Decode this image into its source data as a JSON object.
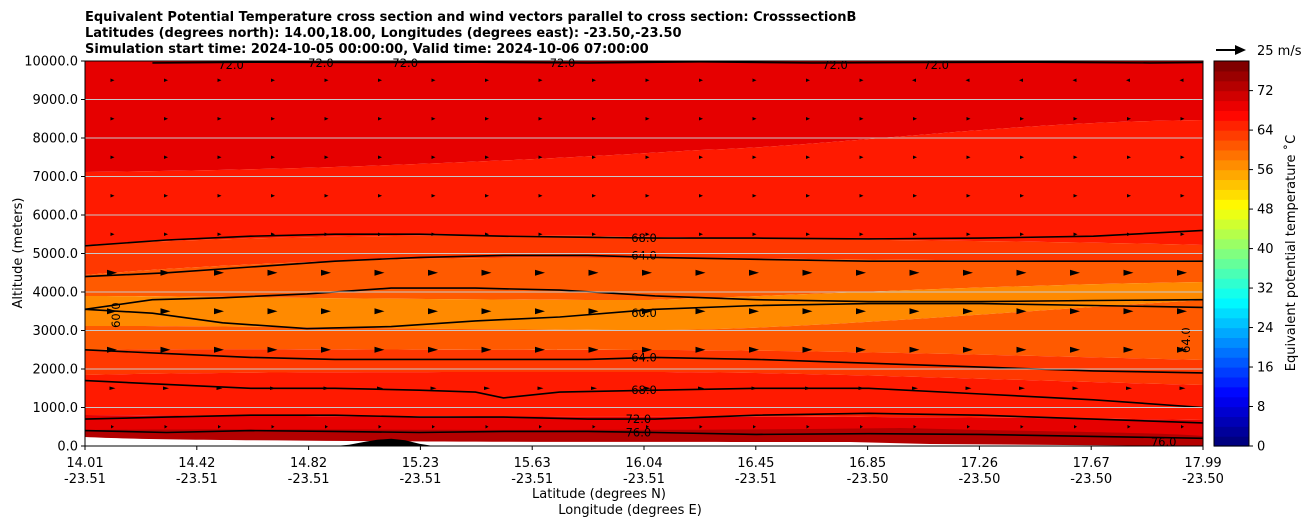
{
  "chart_data": {
    "type": "heatmap",
    "title_lines": [
      "Equivalent Potential Temperature cross section and wind vectors parallel to cross section: CrosssectionB",
      "Latitudes (degrees north): 14.00,18.00, Longitudes (degrees east): -23.50,-23.50",
      "Simulation start time: 2024-10-05 00:00:00, Valid time: 2024-10-06 07:00:00"
    ],
    "xlabel_lat": "Latitude (degrees N)",
    "xlabel_lon": "Longitude (degrees E)",
    "ylabel": "Altitude (meters)",
    "x_ticks_lat": [
      "14.01",
      "14.42",
      "14.82",
      "15.23",
      "15.63",
      "16.04",
      "16.45",
      "16.85",
      "17.26",
      "17.67",
      "17.99"
    ],
    "x_ticks_lon": [
      "-23.51",
      "-23.51",
      "-23.51",
      "-23.51",
      "-23.51",
      "-23.51",
      "-23.51",
      "-23.50",
      "-23.50",
      "-23.50",
      "-23.50"
    ],
    "x_range": [
      14.01,
      17.99
    ],
    "y_ticks": [
      "0.0",
      "1000.0",
      "2000.0",
      "3000.0",
      "4000.0",
      "5000.0",
      "6000.0",
      "7000.0",
      "8000.0",
      "9000.0",
      "10000.0"
    ],
    "ylim": [
      0,
      10000
    ],
    "grid": "horizontal",
    "colorbar": {
      "label": "Equivalent potential temperature ˚C",
      "ticks": [
        "0",
        "8",
        "16",
        "24",
        "32",
        "40",
        "48",
        "56",
        "64",
        "72"
      ],
      "range": [
        0,
        78
      ],
      "colormap": "jet"
    },
    "wind_key_label": "25 m/s",
    "contours": [
      {
        "level": "60.0",
        "x": [
          14.01,
          14.25,
          14.5,
          14.8,
          15.1,
          15.4,
          15.7,
          16.04,
          16.4,
          16.8,
          17.2,
          17.6,
          17.99
        ],
        "y": [
          3550,
          3800,
          3850,
          3950,
          4100,
          4100,
          4050,
          3900,
          3800,
          3750,
          3750,
          3780,
          3800
        ]
      },
      {
        "level": "60.0",
        "x": [
          14.01,
          14.25,
          14.5,
          14.8,
          15.1,
          15.4,
          15.7,
          16.04,
          16.4,
          16.8,
          17.2,
          17.6,
          17.99
        ],
        "y": [
          3550,
          3450,
          3200,
          3050,
          3100,
          3250,
          3350,
          3550,
          3650,
          3700,
          3700,
          3650,
          3600
        ]
      },
      {
        "level": "64.0",
        "x": [
          14.01,
          14.3,
          14.6,
          14.9,
          15.2,
          15.5,
          15.8,
          16.04,
          16.4,
          16.8,
          17.2,
          17.6,
          17.99
        ],
        "y": [
          4400,
          4500,
          4650,
          4800,
          4900,
          4950,
          4950,
          4900,
          4850,
          4800,
          4800,
          4800,
          4800
        ]
      },
      {
        "level": "64.0",
        "x": [
          14.01,
          14.3,
          14.6,
          14.9,
          15.2,
          15.5,
          15.8,
          16.04,
          16.4,
          16.8,
          17.2,
          17.6,
          17.99
        ],
        "y": [
          2500,
          2400,
          2300,
          2250,
          2250,
          2250,
          2250,
          2300,
          2250,
          2150,
          2050,
          1950,
          1900
        ]
      },
      {
        "level": "68.0",
        "x": [
          14.01,
          14.3,
          14.6,
          14.9,
          15.2,
          15.5,
          15.8,
          16.04,
          16.4,
          16.8,
          17.2,
          17.6,
          17.99
        ],
        "y": [
          5200,
          5350,
          5450,
          5500,
          5500,
          5450,
          5420,
          5400,
          5400,
          5380,
          5400,
          5450,
          5600
        ]
      },
      {
        "level": "68.0",
        "x": [
          14.01,
          14.3,
          14.6,
          14.9,
          15.2,
          15.4,
          15.5,
          15.7,
          16.04,
          16.4,
          16.8,
          17.2,
          17.6,
          17.99
        ],
        "y": [
          1700,
          1600,
          1500,
          1500,
          1450,
          1400,
          1250,
          1400,
          1450,
          1500,
          1500,
          1350,
          1200,
          1000
        ]
      },
      {
        "level": "72.0",
        "x": [
          14.01,
          14.3,
          14.6,
          14.9,
          15.2,
          15.5,
          15.8,
          16.04,
          16.4,
          16.8,
          17.2,
          17.6,
          17.99
        ],
        "y": [
          700,
          750,
          800,
          800,
          750,
          750,
          700,
          700,
          800,
          850,
          800,
          700,
          600
        ]
      },
      {
        "level": "76.0",
        "x": [
          14.01,
          14.3,
          14.6,
          14.9,
          15.2,
          15.5,
          15.8,
          16.04,
          16.4,
          16.8,
          17.2,
          17.6,
          17.99
        ],
        "y": [
          400,
          350,
          400,
          380,
          350,
          380,
          380,
          350,
          300,
          320,
          300,
          250,
          200
        ]
      },
      {
        "level": "72.0",
        "x": [
          14.25,
          14.6,
          15.0,
          15.4,
          15.8,
          16.2,
          16.6,
          17.0,
          17.4,
          17.8,
          17.99
        ],
        "y": [
          9950,
          9970,
          9960,
          9970,
          9950,
          9980,
          9950,
          9960,
          9970,
          9950,
          9960
        ]
      }
    ],
    "contour_labels": [
      {
        "text": "68.0",
        "x": 16.0,
        "y": 5400
      },
      {
        "text": "64.0",
        "x": 16.0,
        "y": 4950
      },
      {
        "text": "60.0",
        "x": 16.0,
        "y": 3450
      },
      {
        "text": "64.0",
        "x": 16.0,
        "y": 2300
      },
      {
        "text": "68.0",
        "x": 16.0,
        "y": 1450
      },
      {
        "text": "72.0",
        "x": 15.98,
        "y": 700
      },
      {
        "text": "76.0",
        "x": 15.98,
        "y": 350
      },
      {
        "text": "60.0",
        "x": 14.12,
        "y": 3400,
        "rotate": -90
      },
      {
        "text": "64.0",
        "x": 17.93,
        "y": 2750,
        "rotate": -90
      },
      {
        "text": "72.0",
        "x": 14.53,
        "y": 9900
      },
      {
        "text": "72.0",
        "x": 14.85,
        "y": 9950
      },
      {
        "text": "72.0",
        "x": 15.15,
        "y": 9950
      },
      {
        "text": "72.0",
        "x": 15.71,
        "y": 9950
      },
      {
        "text": "72.0",
        "x": 16.68,
        "y": 9900
      },
      {
        "text": "72.0",
        "x": 17.04,
        "y": 9900
      },
      {
        "text": "76.0",
        "x": 17.85,
        "y": 100
      }
    ],
    "terrain": {
      "x": [
        14.01,
        14.9,
        14.95,
        15.0,
        15.05,
        15.1,
        15.15,
        15.2,
        15.25,
        17.99
      ],
      "y": [
        0,
        0,
        30,
        100,
        160,
        190,
        150,
        60,
        0,
        0
      ]
    }
  }
}
